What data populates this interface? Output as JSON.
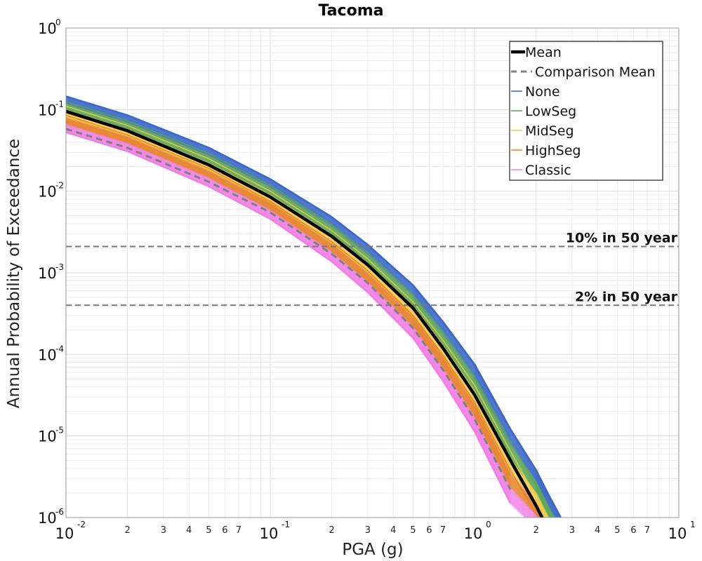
{
  "chart_data": {
    "type": "line",
    "title": "Tacoma",
    "xlabel": "PGA (g)",
    "ylabel": "Annual Probability of Exceedance",
    "xscale": "log",
    "yscale": "log",
    "xlim": [
      0.01,
      10
    ],
    "ylim": [
      1e-06,
      1
    ],
    "grid": true,
    "legend_position": "top-right",
    "x_major_ticks": [
      {
        "base": "10",
        "exp": "-2"
      },
      {
        "base": "10",
        "exp": "-1"
      },
      {
        "base": "10",
        "exp": "0"
      },
      {
        "base": "10",
        "exp": "1"
      }
    ],
    "y_major_ticks": [
      {
        "base": "10",
        "exp": "-6"
      },
      {
        "base": "10",
        "exp": "-5"
      },
      {
        "base": "10",
        "exp": "-4"
      },
      {
        "base": "10",
        "exp": "-3"
      },
      {
        "base": "10",
        "exp": "-2"
      },
      {
        "base": "10",
        "exp": "-1"
      },
      {
        "base": "10",
        "exp": "0"
      }
    ],
    "x_minor_labels": [
      "2",
      "3",
      "4",
      "5",
      "6",
      "7"
    ],
    "x": [
      0.01,
      0.02,
      0.05,
      0.1,
      0.2,
      0.3,
      0.5,
      0.7,
      1.0,
      1.5,
      2.0,
      2.3,
      2.7
    ],
    "series": [
      {
        "name": "Mean",
        "color": "#000000",
        "style": "solid-thick",
        "values": [
          0.095,
          0.055,
          0.021,
          0.0085,
          0.0028,
          0.00125,
          0.00037,
          0.00012,
          3.2e-05,
          5e-06,
          1.4e-06,
          7e-07,
          null
        ]
      },
      {
        "name": "Comparison Mean",
        "color": "#808080",
        "style": "dashed",
        "values": [
          0.058,
          0.034,
          0.013,
          0.0055,
          0.0017,
          0.00075,
          0.00021,
          6.5e-05,
          1.6e-05,
          2.2e-06,
          null,
          null,
          null
        ]
      },
      {
        "name": "None",
        "color": "#3a67c8",
        "style": "band-top",
        "values": [
          0.145,
          0.085,
          0.034,
          0.014,
          0.0048,
          0.0022,
          0.0007,
          0.00025,
          7.5e-05,
          1.2e-05,
          3.8e-06,
          1.9e-06,
          9e-07
        ]
      },
      {
        "name": "LowSeg",
        "color": "#5aa64e",
        "style": "band",
        "values": [
          0.125,
          0.073,
          0.029,
          0.0118,
          0.0039,
          0.00178,
          0.00054,
          0.00019,
          5.4e-05,
          8.5e-06,
          2.5e-06,
          1.2e-06,
          null
        ]
      },
      {
        "name": "MidSeg",
        "color": "#f2c94c",
        "style": "band",
        "values": [
          0.11,
          0.064,
          0.025,
          0.01,
          0.0033,
          0.00148,
          0.00044,
          0.00015,
          4.2e-05,
          6.5e-06,
          1.8e-06,
          9e-07,
          null
        ]
      },
      {
        "name": "HighSeg",
        "color": "#e67e22",
        "style": "band",
        "values": [
          0.085,
          0.049,
          0.019,
          0.0075,
          0.0024,
          0.00106,
          0.0003,
          9.8e-05,
          2.6e-05,
          3.8e-06,
          1.1e-06,
          null,
          null
        ]
      },
      {
        "name": "Classic",
        "color": "#f07ee6",
        "style": "band-bottom",
        "values": [
          0.053,
          0.031,
          0.0115,
          0.0046,
          0.00138,
          0.00058,
          0.00016,
          4.8e-05,
          1.15e-05,
          1.5e-06,
          null,
          null,
          null
        ]
      }
    ],
    "reference_lines": [
      {
        "label": "10% in 50 year",
        "y": 0.0021
      },
      {
        "label": "2% in 50 year",
        "y": 0.0004
      }
    ]
  }
}
